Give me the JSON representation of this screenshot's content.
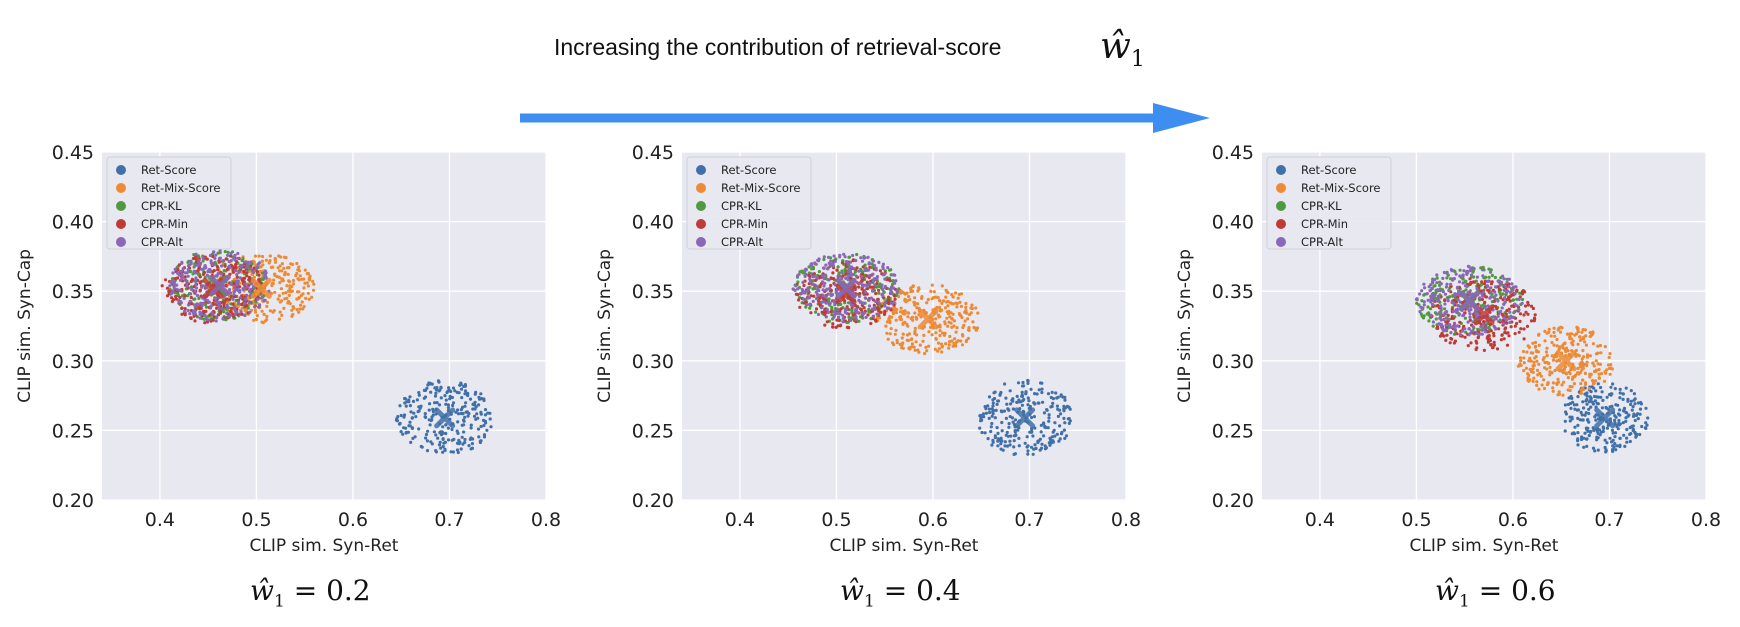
{
  "header": {
    "text": "Increasing the contribution of retrieval-score",
    "symbol": "ŵ",
    "subscript": "1",
    "arrow_color": "#3d8ef0"
  },
  "style": {
    "plot_bg": "#e8e8f0",
    "grid": "#ffffff",
    "colors": {
      "Ret-Score": "#4170a8",
      "Ret-Mix-Score": "#ee8a33",
      "CPR-KL": "#4f9a3e",
      "CPR-Min": "#bf3b36",
      "CPR-Alt": "#8a67b8"
    }
  },
  "chart_data": [
    {
      "type": "scatter",
      "caption": {
        "symbol": "ŵ",
        "subscript": "1",
        "value": "= 0.2"
      },
      "xlabel": "CLIP sim. Syn-Ret",
      "ylabel": "CLIP sim. Syn-Cap",
      "xlim": [
        0.34,
        0.8
      ],
      "ylim": [
        0.2,
        0.45
      ],
      "xticks": [
        0.4,
        0.5,
        0.6,
        0.7,
        0.8
      ],
      "yticks": [
        0.2,
        0.25,
        0.3,
        0.35,
        0.4,
        0.45
      ],
      "grid": true,
      "legend": "top-left",
      "series": [
        {
          "name": "Ret-Score",
          "center": [
            0.695,
            0.259
          ],
          "spread": [
            0.05,
            0.027
          ],
          "n": 260
        },
        {
          "name": "Ret-Mix-Score",
          "center": [
            0.505,
            0.352
          ],
          "spread": [
            0.055,
            0.025
          ],
          "n": 300
        },
        {
          "name": "CPR-KL",
          "center": [
            0.46,
            0.354
          ],
          "spread": [
            0.05,
            0.026
          ],
          "n": 230
        },
        {
          "name": "CPR-Min",
          "center": [
            0.455,
            0.352
          ],
          "spread": [
            0.053,
            0.025
          ],
          "n": 250
        },
        {
          "name": "CPR-Alt",
          "center": [
            0.462,
            0.354
          ],
          "spread": [
            0.052,
            0.026
          ],
          "n": 250
        }
      ]
    },
    {
      "type": "scatter",
      "caption": {
        "symbol": "ŵ",
        "subscript": "1",
        "value": "= 0.4"
      },
      "xlabel": "CLIP sim. Syn-Ret",
      "ylabel": "CLIP sim. Syn-Cap",
      "xlim": [
        0.34,
        0.8
      ],
      "ylim": [
        0.2,
        0.45
      ],
      "xticks": [
        0.4,
        0.5,
        0.6,
        0.7,
        0.8
      ],
      "yticks": [
        0.2,
        0.25,
        0.3,
        0.35,
        0.4,
        0.45
      ],
      "grid": true,
      "legend": "top-left",
      "series": [
        {
          "name": "Ret-Score",
          "center": [
            0.695,
            0.259
          ],
          "spread": [
            0.05,
            0.027
          ],
          "n": 260
        },
        {
          "name": "Ret-Mix-Score",
          "center": [
            0.595,
            0.33
          ],
          "spread": [
            0.053,
            0.025
          ],
          "n": 300
        },
        {
          "name": "CPR-KL",
          "center": [
            0.51,
            0.352
          ],
          "spread": [
            0.055,
            0.025
          ],
          "n": 230
        },
        {
          "name": "CPR-Min",
          "center": [
            0.51,
            0.348
          ],
          "spread": [
            0.055,
            0.025
          ],
          "n": 250
        },
        {
          "name": "CPR-Alt",
          "center": [
            0.51,
            0.352
          ],
          "spread": [
            0.055,
            0.025
          ],
          "n": 250
        }
      ]
    },
    {
      "type": "scatter",
      "caption": {
        "symbol": "ŵ",
        "subscript": "1",
        "value": "= 0.6"
      },
      "xlabel": "CLIP sim. Syn-Ret",
      "ylabel": "CLIP sim. Syn-Cap",
      "xlim": [
        0.34,
        0.8
      ],
      "ylim": [
        0.2,
        0.45
      ],
      "xticks": [
        0.4,
        0.5,
        0.6,
        0.7,
        0.8
      ],
      "yticks": [
        0.2,
        0.25,
        0.3,
        0.35,
        0.4,
        0.45
      ],
      "grid": true,
      "legend": "top-left",
      "series": [
        {
          "name": "Ret-Score",
          "center": [
            0.695,
            0.259
          ],
          "spread": [
            0.045,
            0.025
          ],
          "n": 260
        },
        {
          "name": "Ret-Mix-Score",
          "center": [
            0.655,
            0.3
          ],
          "spread": [
            0.05,
            0.025
          ],
          "n": 280
        },
        {
          "name": "CPR-KL",
          "center": [
            0.555,
            0.343
          ],
          "spread": [
            0.055,
            0.025
          ],
          "n": 230
        },
        {
          "name": "CPR-Min",
          "center": [
            0.57,
            0.333
          ],
          "spread": [
            0.055,
            0.027
          ],
          "n": 250
        },
        {
          "name": "CPR-Alt",
          "center": [
            0.555,
            0.343
          ],
          "spread": [
            0.055,
            0.025
          ],
          "n": 250
        }
      ]
    }
  ]
}
